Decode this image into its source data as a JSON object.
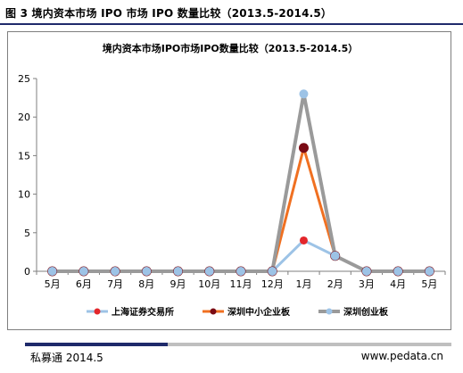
{
  "figure_title": "图 3  境内资本市场 IPO 市场 IPO 数量比较（2013.5-2014.5）",
  "footer": {
    "source": "私募通  2014.5",
    "website": "www.pedata.cn"
  },
  "colors": {
    "上海证券交易所": "#9dc3e6",
    "上海证券交易所_marker": "#e3262b",
    "深圳中小企业板": "#f07021",
    "深圳中小企业板_marker": "#7a0a14",
    "深圳创业板": "#9a9a9a",
    "深圳创业板_marker": "#9dc3e6"
  },
  "chart_data": {
    "type": "line",
    "title": "境内资本市场IPO市场IPO数量比较（2013.5-2014.5）",
    "xlabel": "",
    "ylabel": "",
    "ylim": [
      0,
      25
    ],
    "yticks": [
      0,
      5,
      10,
      15,
      20,
      25
    ],
    "categories": [
      "5月",
      "6月",
      "7月",
      "8月",
      "9月",
      "10月",
      "11月",
      "12月",
      "1月",
      "2月",
      "3月",
      "4月",
      "5月"
    ],
    "grid": false,
    "legend_position": "bottom",
    "series": [
      {
        "name": "上海证券交易所",
        "values": [
          0,
          0,
          0,
          0,
          0,
          0,
          0,
          0,
          4,
          2,
          0,
          0,
          0
        ]
      },
      {
        "name": "深圳中小企业板",
        "values": [
          0,
          0,
          0,
          0,
          0,
          0,
          0,
          0,
          16,
          2,
          0,
          0,
          0
        ]
      },
      {
        "name": "深圳创业板",
        "values": [
          0,
          0,
          0,
          0,
          0,
          0,
          0,
          0,
          23,
          2,
          0,
          0,
          0
        ]
      }
    ]
  }
}
